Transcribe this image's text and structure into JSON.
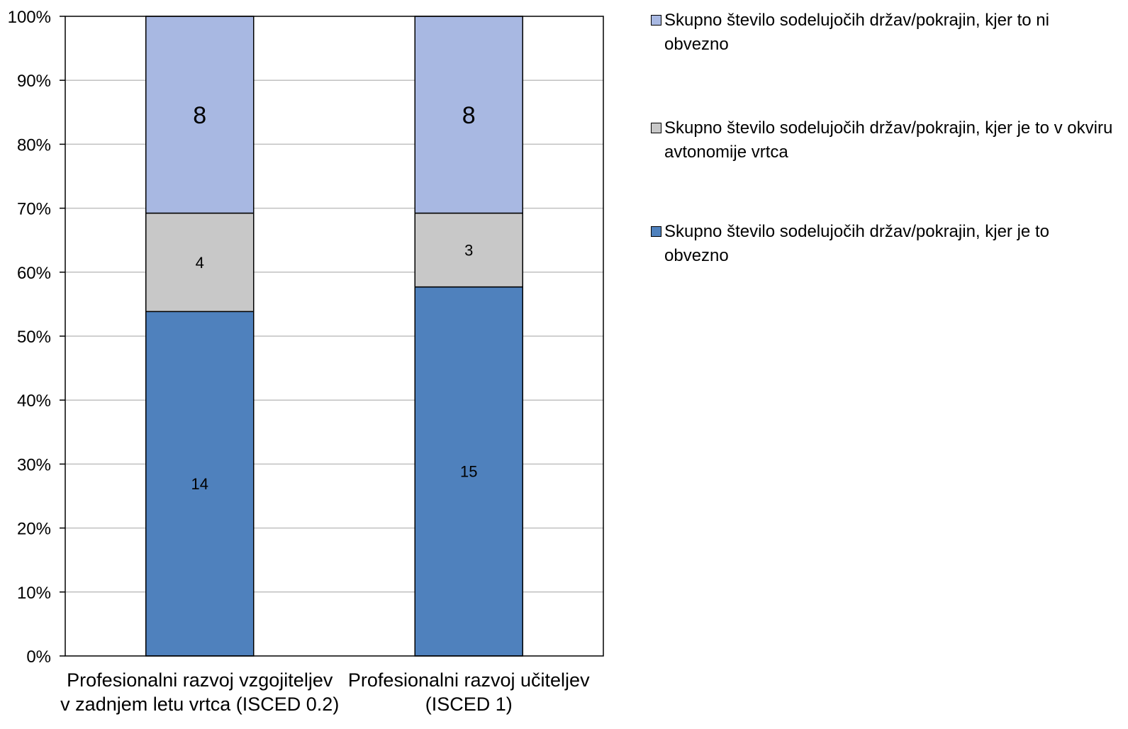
{
  "chart_data": {
    "type": "bar",
    "stacked": true,
    "percent": true,
    "categories": [
      [
        "Profesionalni razvoj vzgojiteljev",
        "v zadnjem letu vrtca (ISCED 0.2)"
      ],
      [
        "Profesionalni razvoj učiteljev",
        "(ISCED 1)"
      ]
    ],
    "series": [
      {
        "name": "Skupno število sodelujočih držav/pokrajin, kjer je to obvezno",
        "values": [
          14,
          15
        ],
        "color": "#4f81bd"
      },
      {
        "name": "Skupno število sodelujočih držav/pokrajin, kjer je to v okviru avtonomije vrtca",
        "values": [
          4,
          3
        ],
        "color": "#c8c8c8"
      },
      {
        "name": "Skupno število sodelujočih držav/pokrajin, kjer to ni obvezno",
        "values": [
          8,
          8
        ],
        "color": "#a8b8e2"
      }
    ],
    "legend_order": [
      2,
      1,
      0
    ],
    "y_ticks": [
      "0%",
      "10%",
      "20%",
      "30%",
      "40%",
      "50%",
      "60%",
      "70%",
      "80%",
      "90%",
      "100%"
    ],
    "ylim": [
      0,
      100
    ],
    "grid": true,
    "legend_position": "right"
  }
}
